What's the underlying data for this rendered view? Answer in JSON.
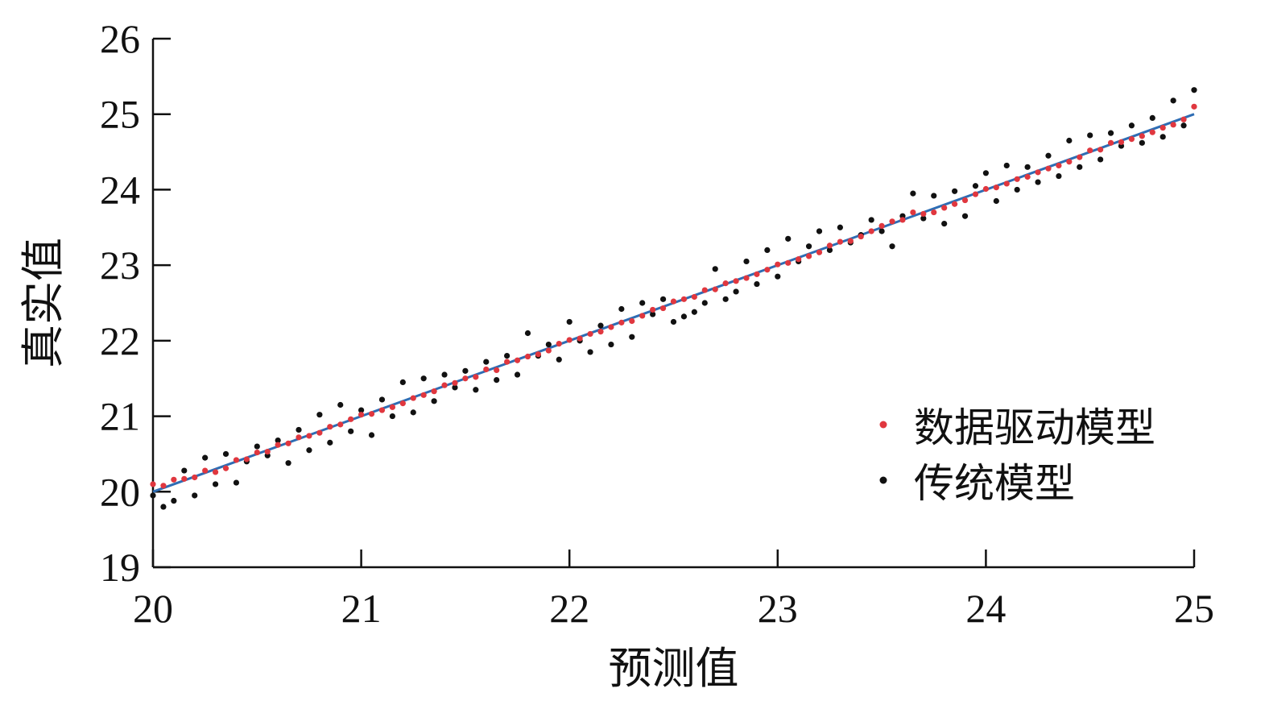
{
  "chart_data": {
    "type": "scatter",
    "xlabel": "预测值",
    "ylabel": "真实值",
    "xlim": [
      20,
      25
    ],
    "ylim": [
      19,
      26
    ],
    "x_ticks": [
      "20",
      "21",
      "22",
      "23",
      "24",
      "25"
    ],
    "y_ticks": [
      "19",
      "20",
      "21",
      "22",
      "23",
      "24",
      "25",
      "26"
    ],
    "grid": false,
    "legend_position": "right",
    "reference_line": {
      "x": [
        20,
        25
      ],
      "y": [
        20,
        25
      ],
      "color": "#2e6db4"
    },
    "series": [
      {
        "name": "数据驱动模型",
        "color": "#e0373f",
        "points": [
          [
            20.0,
            20.1
          ],
          [
            20.05,
            20.08
          ],
          [
            20.1,
            20.16
          ],
          [
            20.15,
            20.17
          ],
          [
            20.2,
            20.19
          ],
          [
            20.25,
            20.28
          ],
          [
            20.3,
            20.26
          ],
          [
            20.35,
            20.31
          ],
          [
            20.4,
            20.42
          ],
          [
            20.45,
            20.43
          ],
          [
            20.5,
            20.52
          ],
          [
            20.55,
            20.53
          ],
          [
            20.6,
            20.62
          ],
          [
            20.65,
            20.64
          ],
          [
            20.7,
            20.72
          ],
          [
            20.75,
            20.74
          ],
          [
            20.8,
            20.78
          ],
          [
            20.85,
            20.86
          ],
          [
            20.9,
            20.89
          ],
          [
            20.95,
            20.96
          ],
          [
            21.0,
            21.02
          ],
          [
            21.05,
            21.03
          ],
          [
            21.1,
            21.08
          ],
          [
            21.15,
            21.12
          ],
          [
            21.2,
            21.17
          ],
          [
            21.25,
            21.24
          ],
          [
            21.3,
            21.28
          ],
          [
            21.35,
            21.33
          ],
          [
            21.4,
            21.41
          ],
          [
            21.45,
            21.44
          ],
          [
            21.5,
            21.5
          ],
          [
            21.55,
            21.52
          ],
          [
            21.6,
            21.62
          ],
          [
            21.65,
            21.61
          ],
          [
            21.7,
            21.72
          ],
          [
            21.75,
            21.74
          ],
          [
            21.8,
            21.79
          ],
          [
            21.85,
            21.82
          ],
          [
            21.9,
            21.87
          ],
          [
            21.95,
            21.96
          ],
          [
            22.0,
            22.01
          ],
          [
            22.05,
            22.03
          ],
          [
            22.1,
            22.09
          ],
          [
            22.15,
            22.12
          ],
          [
            22.2,
            22.18
          ],
          [
            22.25,
            22.24
          ],
          [
            22.3,
            22.26
          ],
          [
            22.35,
            22.33
          ],
          [
            22.4,
            22.41
          ],
          [
            22.45,
            22.43
          ],
          [
            22.5,
            22.52
          ],
          [
            22.55,
            22.55
          ],
          [
            22.6,
            22.58
          ],
          [
            22.65,
            22.67
          ],
          [
            22.7,
            22.68
          ],
          [
            22.75,
            22.76
          ],
          [
            22.8,
            22.79
          ],
          [
            22.85,
            22.83
          ],
          [
            22.9,
            22.88
          ],
          [
            22.95,
            22.94
          ],
          [
            23.0,
            23.01
          ],
          [
            23.05,
            23.03
          ],
          [
            23.1,
            23.08
          ],
          [
            23.15,
            23.12
          ],
          [
            23.2,
            23.17
          ],
          [
            23.25,
            23.26
          ],
          [
            23.3,
            23.31
          ],
          [
            23.35,
            23.32
          ],
          [
            23.4,
            23.38
          ],
          [
            23.45,
            23.45
          ],
          [
            23.5,
            23.52
          ],
          [
            23.55,
            23.58
          ],
          [
            23.6,
            23.6
          ],
          [
            23.65,
            23.7
          ],
          [
            23.7,
            23.68
          ],
          [
            23.75,
            23.7
          ],
          [
            23.8,
            23.76
          ],
          [
            23.85,
            23.81
          ],
          [
            23.9,
            23.86
          ],
          [
            23.95,
            23.94
          ],
          [
            24.0,
            24.01
          ],
          [
            24.05,
            24.03
          ],
          [
            24.1,
            24.08
          ],
          [
            24.15,
            24.14
          ],
          [
            24.2,
            24.17
          ],
          [
            24.25,
            24.23
          ],
          [
            24.3,
            24.28
          ],
          [
            24.35,
            24.32
          ],
          [
            24.4,
            24.37
          ],
          [
            24.45,
            24.43
          ],
          [
            24.5,
            24.52
          ],
          [
            24.55,
            24.53
          ],
          [
            24.6,
            24.62
          ],
          [
            24.65,
            24.63
          ],
          [
            24.7,
            24.67
          ],
          [
            24.75,
            24.71
          ],
          [
            24.8,
            24.76
          ],
          [
            24.85,
            24.82
          ],
          [
            24.9,
            24.86
          ],
          [
            24.95,
            24.93
          ],
          [
            25.0,
            25.1
          ]
        ]
      },
      {
        "name": "传统模型",
        "color": "#111111",
        "points": [
          [
            20.0,
            19.95
          ],
          [
            20.05,
            19.8
          ],
          [
            20.1,
            19.88
          ],
          [
            20.15,
            20.28
          ],
          [
            20.2,
            19.95
          ],
          [
            20.25,
            20.45
          ],
          [
            20.3,
            20.1
          ],
          [
            20.35,
            20.5
          ],
          [
            20.4,
            20.12
          ],
          [
            20.45,
            20.4
          ],
          [
            20.5,
            20.6
          ],
          [
            20.55,
            20.48
          ],
          [
            20.6,
            20.68
          ],
          [
            20.65,
            20.38
          ],
          [
            20.7,
            20.82
          ],
          [
            20.75,
            20.55
          ],
          [
            20.8,
            21.02
          ],
          [
            20.85,
            20.65
          ],
          [
            20.9,
            21.15
          ],
          [
            20.95,
            20.8
          ],
          [
            21.0,
            21.08
          ],
          [
            21.05,
            20.75
          ],
          [
            21.1,
            21.22
          ],
          [
            21.15,
            21.0
          ],
          [
            21.2,
            21.45
          ],
          [
            21.25,
            21.05
          ],
          [
            21.3,
            21.5
          ],
          [
            21.35,
            21.2
          ],
          [
            21.4,
            21.55
          ],
          [
            21.45,
            21.38
          ],
          [
            21.5,
            21.6
          ],
          [
            21.55,
            21.35
          ],
          [
            21.6,
            21.72
          ],
          [
            21.65,
            21.48
          ],
          [
            21.7,
            21.8
          ],
          [
            21.75,
            21.55
          ],
          [
            21.8,
            22.1
          ],
          [
            21.85,
            21.8
          ],
          [
            21.9,
            21.95
          ],
          [
            21.95,
            21.75
          ],
          [
            22.0,
            22.25
          ],
          [
            22.05,
            22.0
          ],
          [
            22.1,
            21.85
          ],
          [
            22.15,
            22.2
          ],
          [
            22.2,
            21.95
          ],
          [
            22.25,
            22.42
          ],
          [
            22.3,
            22.05
          ],
          [
            22.35,
            22.5
          ],
          [
            22.4,
            22.35
          ],
          [
            22.45,
            22.55
          ],
          [
            22.5,
            22.25
          ],
          [
            22.55,
            22.32
          ],
          [
            22.6,
            22.38
          ],
          [
            22.65,
            22.5
          ],
          [
            22.7,
            22.95
          ],
          [
            22.75,
            22.55
          ],
          [
            22.8,
            22.65
          ],
          [
            22.85,
            23.05
          ],
          [
            22.9,
            22.75
          ],
          [
            22.95,
            23.2
          ],
          [
            23.0,
            22.85
          ],
          [
            23.05,
            23.35
          ],
          [
            23.1,
            23.05
          ],
          [
            23.15,
            23.25
          ],
          [
            23.2,
            23.45
          ],
          [
            23.25,
            23.2
          ],
          [
            23.3,
            23.5
          ],
          [
            23.35,
            23.3
          ],
          [
            23.4,
            23.4
          ],
          [
            23.45,
            23.6
          ],
          [
            23.5,
            23.45
          ],
          [
            23.55,
            23.25
          ],
          [
            23.6,
            23.65
          ],
          [
            23.65,
            23.95
          ],
          [
            23.7,
            23.62
          ],
          [
            23.75,
            23.92
          ],
          [
            23.8,
            23.55
          ],
          [
            23.85,
            23.98
          ],
          [
            23.9,
            23.65
          ],
          [
            23.95,
            24.05
          ],
          [
            24.0,
            24.22
          ],
          [
            24.05,
            23.85
          ],
          [
            24.1,
            24.32
          ],
          [
            24.15,
            24.0
          ],
          [
            24.2,
            24.3
          ],
          [
            24.25,
            24.1
          ],
          [
            24.3,
            24.45
          ],
          [
            24.35,
            24.18
          ],
          [
            24.4,
            24.65
          ],
          [
            24.45,
            24.3
          ],
          [
            24.5,
            24.72
          ],
          [
            24.55,
            24.4
          ],
          [
            24.6,
            24.75
          ],
          [
            24.65,
            24.58
          ],
          [
            24.7,
            24.85
          ],
          [
            24.75,
            24.62
          ],
          [
            24.8,
            24.95
          ],
          [
            24.85,
            24.7
          ],
          [
            24.9,
            25.18
          ],
          [
            24.95,
            24.85
          ],
          [
            25.0,
            25.32
          ]
        ]
      }
    ]
  }
}
